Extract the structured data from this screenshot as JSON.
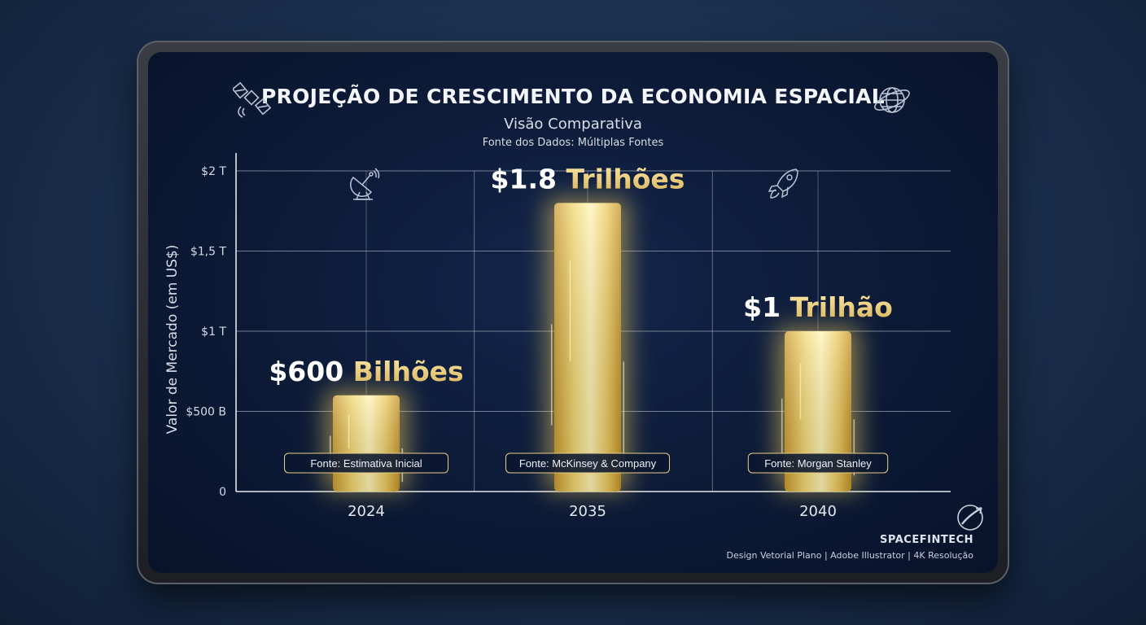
{
  "title": "PROJEÇÃO DE CRESCIMENTO DA ECONOMIA ESPACIAL",
  "subtitle": "Visão Comparativa",
  "source_line": "Fonte dos Dados: Múltiplas Fontes",
  "brand": "SPACEFINTECH",
  "credits": "Design Vetorial Plano | Adobe Illustrator | 4K Resolução",
  "icons": [
    "satellite-icon",
    "globe-icon",
    "satellite-dish-icon",
    "rocket-icon",
    "logo-rocket-icon"
  ],
  "colors": {
    "gold": "#e8c55a",
    "gold_light": "#fff2a8",
    "background": "#0c1a36",
    "grid": "#c8cfdc"
  },
  "chart_data": {
    "type": "bar",
    "ylabel": "Valor de Mercado (em US$)",
    "xlabel": "",
    "categories": [
      "2024",
      "2035",
      "2040"
    ],
    "values": [
      0.6,
      1.8,
      1.0
    ],
    "unit": "trillion USD",
    "ylim": [
      0,
      2
    ],
    "yticks": [
      {
        "value": 0,
        "label": "0"
      },
      {
        "value": 0.5,
        "label": "$500 B"
      },
      {
        "value": 1,
        "label": "$1 T"
      },
      {
        "value": 1.5,
        "label": "$1,5 T"
      },
      {
        "value": 2,
        "label": "$2 T"
      }
    ],
    "value_labels": [
      {
        "number": "$600",
        "word": "Bilhões"
      },
      {
        "number": "$1.8",
        "word": "Trilhões"
      },
      {
        "number": "$1",
        "word": "Trilhão"
      }
    ],
    "sources": [
      "Fonte: Estimativa Inicial",
      "Fonte: McKinsey & Company",
      "Fonte: Morgan Stanley"
    ],
    "grid": true
  }
}
